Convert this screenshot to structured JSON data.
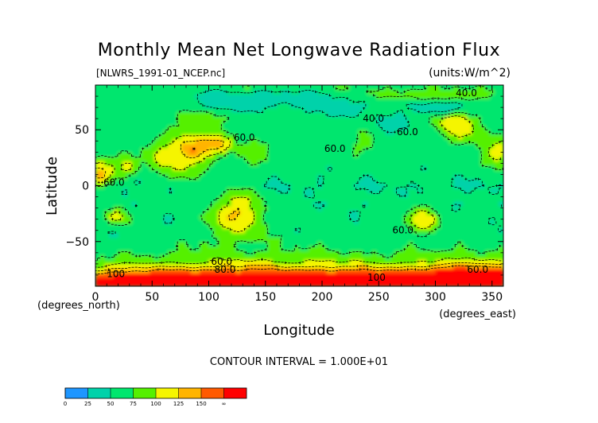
{
  "chart_data": {
    "type": "heatmap",
    "title": "Monthly Mean Net Longwave Radiation Flux",
    "subtitle_left": "[NLWRS_1991-01_NCEP.nc]",
    "subtitle_right": "(units:W/m^2)",
    "xlabel": "Longitude",
    "xunit": "(degrees_east)",
    "ylabel": "Latitude",
    "yunit": "(degrees_north)",
    "xlim": [
      0,
      360
    ],
    "ylim": [
      -90,
      90
    ],
    "xticks": [
      0,
      50,
      100,
      150,
      200,
      250,
      300,
      350
    ],
    "yticks": [
      -50,
      0,
      50
    ],
    "contour_interval_text": "CONTOUR INTERVAL = 1.000E+01",
    "contour_labels": [
      {
        "text": "40.0",
        "x": 318,
        "y": 83
      },
      {
        "text": "40.0",
        "x": 236,
        "y": 60
      },
      {
        "text": "60.0",
        "x": 266,
        "y": 48
      },
      {
        "text": "60.0",
        "x": 202,
        "y": 33
      },
      {
        "text": "60.0",
        "x": 7,
        "y": 3
      },
      {
        "text": "60.0",
        "x": 122,
        "y": 43
      },
      {
        "text": "60.0",
        "x": 262,
        "y": -40
      },
      {
        "text": "60.0",
        "x": 102,
        "y": -68
      },
      {
        "text": "80.0",
        "x": 105,
        "y": -75
      },
      {
        "text": "100",
        "x": 10,
        "y": -79
      },
      {
        "text": "100",
        "x": 240,
        "y": -82
      },
      {
        "text": "60.0",
        "x": 328,
        "y": -75
      }
    ],
    "colorbar": {
      "ticks": [
        "0",
        "25",
        "50",
        "75",
        "100",
        "125",
        "150",
        "∞"
      ],
      "colors": [
        "#1e96ff",
        "#00d2aa",
        "#00e66e",
        "#55f000",
        "#f5f500",
        "#ffb400",
        "#ff5a00",
        "#ff0000"
      ]
    },
    "features": [
      {
        "lon": 3,
        "lat": 12,
        "r": 8,
        "value": 140
      },
      {
        "lon": 28,
        "lat": 16,
        "r": 6,
        "value": 110
      },
      {
        "lon": 75,
        "lat": 22,
        "r": 13,
        "value": 105
      },
      {
        "lon": 88,
        "lat": 34,
        "r": 8,
        "value": 125
      },
      {
        "lon": 92,
        "lat": 58,
        "r": 6,
        "value": 100
      },
      {
        "lon": 110,
        "lat": 38,
        "r": 6,
        "value": 115
      },
      {
        "lon": 140,
        "lat": 32,
        "r": 7,
        "value": 95
      },
      {
        "lon": 55,
        "lat": 30,
        "r": 8,
        "value": 85
      },
      {
        "lon": 125,
        "lat": -25,
        "r": 14,
        "value": 130
      },
      {
        "lon": 20,
        "lat": -27,
        "r": 6,
        "value": 115
      },
      {
        "lon": 288,
        "lat": -30,
        "r": 8,
        "value": 125
      },
      {
        "lon": 312,
        "lat": 60,
        "r": 5,
        "value": 100
      },
      {
        "lon": 322,
        "lat": 50,
        "r": 8,
        "value": 105
      },
      {
        "lon": 355,
        "lat": 30,
        "r": 9,
        "value": 110
      },
      {
        "lon": 300,
        "lat": 80,
        "r": 6,
        "value": 95
      },
      {
        "lon": 238,
        "lat": 38,
        "r": 8,
        "value": 80
      },
      {
        "lon": 260,
        "lat": 55,
        "r": 6,
        "value": 35
      },
      {
        "lon": 120,
        "lat": 74,
        "r": 6,
        "value": 30
      },
      {
        "lon": 210,
        "lat": 68,
        "r": 6,
        "value": 35
      },
      {
        "lon": 175,
        "lat": 78,
        "r": 5,
        "value": 40
      },
      {
        "lon": 300,
        "lat": 70,
        "r": 6,
        "value": 20
      },
      {
        "lon": 100,
        "lat": -84,
        "r": 16,
        "value": 110
      },
      {
        "lon": 200,
        "lat": -85,
        "r": 18,
        "value": 115
      },
      {
        "lon": 320,
        "lat": -84,
        "r": 18,
        "value": 105
      },
      {
        "lon": 20,
        "lat": -82,
        "r": 12,
        "value": 100
      },
      {
        "lon": 340,
        "lat": -80,
        "r": 8,
        "value": 135
      },
      {
        "lon": 45,
        "lat": -60,
        "r": 8,
        "value": 58
      },
      {
        "lon": 200,
        "lat": -60,
        "r": 10,
        "value": 55
      }
    ]
  }
}
